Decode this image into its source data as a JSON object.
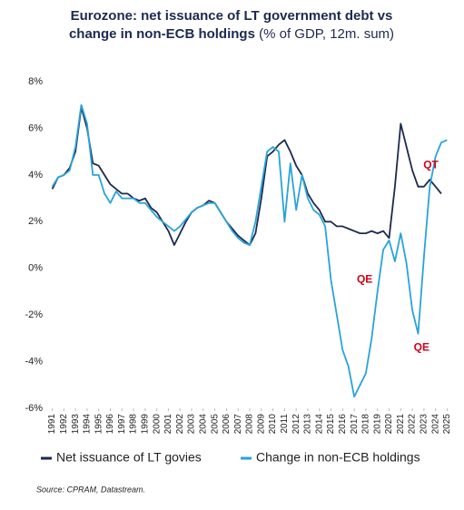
{
  "chart_data": {
    "type": "line",
    "title": [
      "Eurozone: net issuance of LT government debt vs",
      "change in non-ECB holdings"
    ],
    "subtitle": "(% of GDP, 12m. sum)",
    "source": "Source: CPRAM, Datastream.",
    "x": [
      1991,
      1991.5,
      1992,
      1992.5,
      1993,
      1993.5,
      1994,
      1994.5,
      1995,
      1995.5,
      1996,
      1996.5,
      1997,
      1997.5,
      1998,
      1998.5,
      1999,
      1999.5,
      2000,
      2000.5,
      2001,
      2001.5,
      2002,
      2002.5,
      2003,
      2003.5,
      2004,
      2004.5,
      2005,
      2005.5,
      2006,
      2006.5,
      2007,
      2007.5,
      2008,
      2008.5,
      2009,
      2009.5,
      2010,
      2010.5,
      2011,
      2011.5,
      2012,
      2012.5,
      2013,
      2013.5,
      2014,
      2014.5,
      2015,
      2015.5,
      2016,
      2016.5,
      2017,
      2017.5,
      2018,
      2018.5,
      2019,
      2019.5,
      2020,
      2020.5,
      2021,
      2021.5,
      2022,
      2022.5,
      2023,
      2023.5,
      2024,
      2024.5,
      2025
    ],
    "series": [
      {
        "name": "Net issuance of LT govies",
        "color": "#1c2a4f",
        "values": [
          3.4,
          3.9,
          4.0,
          4.3,
          5.0,
          6.9,
          6.0,
          4.5,
          4.4,
          4.0,
          3.6,
          3.4,
          3.2,
          3.2,
          3.0,
          2.9,
          3.0,
          2.6,
          2.4,
          2.0,
          1.6,
          1.0,
          1.5,
          2.0,
          2.4,
          2.6,
          2.7,
          2.9,
          2.8,
          2.4,
          2.0,
          1.7,
          1.4,
          1.2,
          1.0,
          1.5,
          3.0,
          4.8,
          5.0,
          5.3,
          5.5,
          5.0,
          4.4,
          4.0,
          3.2,
          2.8,
          2.5,
          2.0,
          2.0,
          1.8,
          1.8,
          1.7,
          1.6,
          1.5,
          1.5,
          1.6,
          1.5,
          1.6,
          1.3,
          3.5,
          6.2,
          5.2,
          4.2,
          3.5,
          3.5,
          3.8,
          3.5,
          3.2,
          null
        ]
      },
      {
        "name": "Change in non-ECB holdings",
        "color": "#29a3d8",
        "values": [
          3.5,
          3.9,
          4.0,
          4.2,
          5.2,
          7.0,
          6.2,
          4.0,
          4.0,
          3.2,
          2.8,
          3.3,
          3.0,
          3.0,
          3.0,
          2.8,
          2.8,
          2.5,
          2.2,
          2.0,
          1.8,
          1.6,
          1.8,
          2.1,
          2.4,
          2.6,
          2.7,
          2.8,
          2.8,
          2.4,
          2.0,
          1.6,
          1.3,
          1.1,
          1.0,
          2.0,
          3.5,
          5.0,
          5.2,
          5.0,
          2.0,
          4.5,
          2.5,
          4.0,
          3.0,
          2.5,
          2.3,
          1.8,
          -0.5,
          -2.0,
          -3.5,
          -4.2,
          -5.5,
          -5.0,
          -4.5,
          -3.0,
          -1.0,
          0.8,
          1.2,
          0.3,
          1.5,
          0.2,
          -1.8,
          -2.8,
          0.5,
          3.5,
          4.8,
          5.4,
          5.5
        ]
      }
    ],
    "xlim": [
      1990.8,
      2025.2
    ],
    "xticks": [
      1991,
      1992,
      1993,
      1994,
      1995,
      1996,
      1997,
      1998,
      1999,
      2000,
      2001,
      2002,
      2003,
      2004,
      2005,
      2006,
      2007,
      2008,
      2009,
      2010,
      2011,
      2012,
      2013,
      2014,
      2015,
      2016,
      2017,
      2018,
      2019,
      2020,
      2021,
      2022,
      2023,
      2024,
      2025
    ],
    "ylim": [
      -6,
      8
    ],
    "yticks": [
      {
        "value": -6,
        "label": "-6%"
      },
      {
        "value": -4,
        "label": "-4%"
      },
      {
        "value": -2,
        "label": "-2%"
      },
      {
        "value": 0,
        "label": "0%"
      },
      {
        "value": 2,
        "label": "2%"
      },
      {
        "value": 4,
        "label": "4%"
      },
      {
        "value": 6,
        "label": "6%"
      },
      {
        "value": 8,
        "label": "8%"
      }
    ],
    "annotations": [
      {
        "text": "QT",
        "x": 2023.6,
        "y": 4.4
      },
      {
        "text": "QE",
        "x": 2017.9,
        "y": -0.5
      },
      {
        "text": "QE",
        "x": 2022.8,
        "y": -3.4
      }
    ],
    "annotation_color": "#d0021b"
  }
}
